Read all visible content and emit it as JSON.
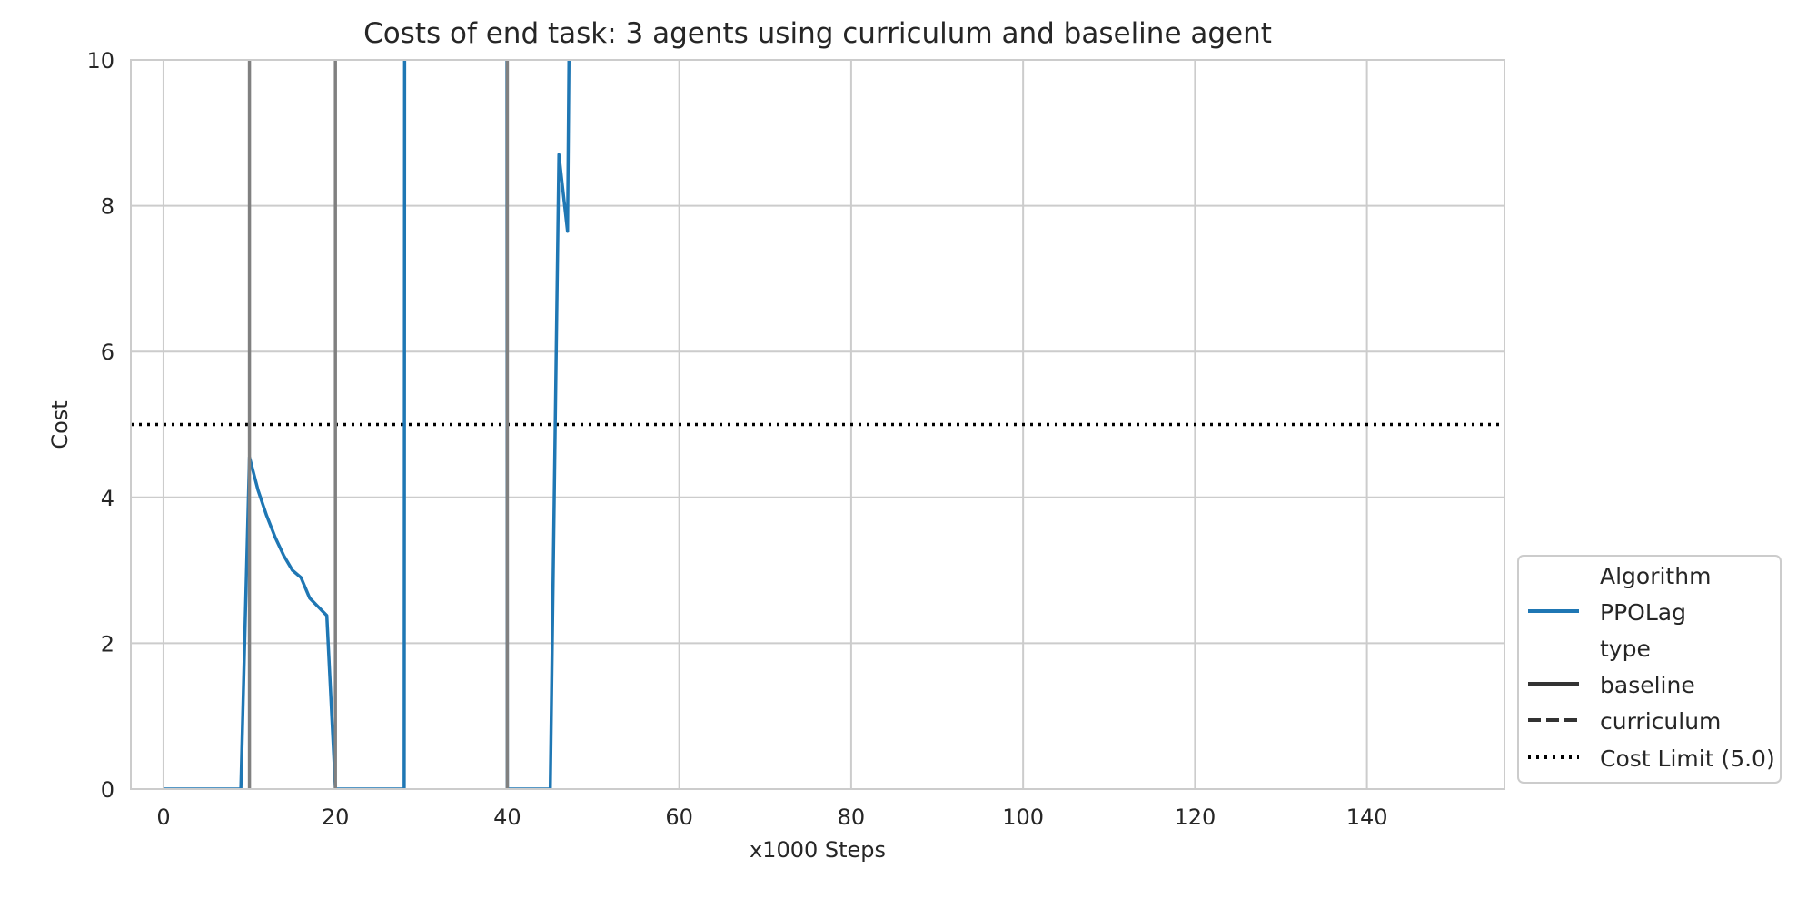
{
  "chart_data": {
    "type": "line",
    "title": "Costs of end task: 3 agents using curriculum and baseline agent",
    "xlabel": "x1000 Steps",
    "ylabel": "Cost",
    "xlim": [
      -3.8,
      156
    ],
    "ylim": [
      0,
      10
    ],
    "xticks": [
      0,
      20,
      40,
      60,
      80,
      100,
      120,
      140
    ],
    "yticks": [
      0,
      2,
      4,
      6,
      8,
      10
    ],
    "grid": true,
    "legend_position": "lower-right, outside plot",
    "legend": {
      "title_algorithm": "Algorithm",
      "algorithm_entries": [
        "PPOLag"
      ],
      "title_type": "type",
      "type_entries": [
        "baseline",
        "curriculum"
      ],
      "limit_entry": "Cost Limit (5.0)"
    },
    "cost_limit": 5.0,
    "vertical_markers": [
      10,
      20,
      40
    ],
    "series": [
      {
        "name": "PPOLag",
        "style": "solid",
        "color": "#1f77b4",
        "x": [
          0,
          1,
          2,
          3,
          4,
          5,
          6,
          7,
          8,
          9,
          10,
          11,
          12,
          13,
          14,
          15,
          16,
          17,
          18,
          19,
          20,
          21,
          22,
          23,
          24,
          25,
          26,
          27,
          28,
          28.05,
          39.95,
          40,
          41,
          42,
          43,
          44,
          45,
          46,
          47,
          47.2
        ],
        "y": [
          0,
          0,
          0,
          0,
          0,
          0,
          0,
          0,
          0,
          0,
          4.55,
          4.1,
          3.75,
          3.45,
          3.2,
          3.0,
          2.9,
          2.62,
          2.5,
          2.38,
          0,
          0,
          0,
          0,
          0,
          0,
          0,
          0,
          0,
          10.5,
          10.5,
          0,
          0,
          0,
          0,
          0,
          0,
          8.7,
          7.65,
          10.5
        ]
      }
    ],
    "colors": {
      "line": "#1f77b4",
      "marker": "#808080",
      "grid": "#cccccc",
      "limit": "#000000"
    }
  }
}
